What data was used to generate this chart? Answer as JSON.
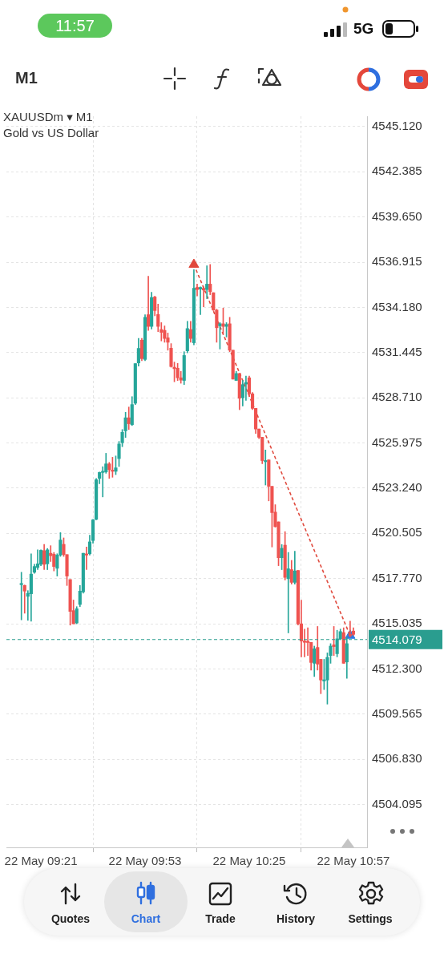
{
  "chart_data": {
    "type": "candlestick",
    "title": "XAUUSDm ▾ M1",
    "subtitle": "Gold vs US Dollar",
    "annotations": [
      "11:57",
      "5G",
      "M1",
      "Quotes",
      "Chart",
      "Trade",
      "History",
      "Settings"
    ],
    "categories": [
      null,
      null,
      null,
      null,
      null,
      null,
      "22 May 09:21",
      null,
      null,
      null,
      null,
      null,
      null,
      null,
      null,
      null,
      null,
      null,
      null,
      null,
      null,
      null,
      null,
      null,
      null,
      null,
      null,
      null,
      null,
      null,
      null,
      null,
      null,
      null,
      null,
      null,
      null,
      null,
      "22 May 09:53",
      null,
      null,
      null,
      null,
      null,
      null,
      null,
      null,
      null,
      null,
      null,
      null,
      null,
      null,
      null,
      null,
      null,
      null,
      null,
      null,
      null,
      null,
      null,
      null,
      null,
      null,
      null,
      null,
      null,
      null,
      null,
      "22 May 10:25",
      null,
      null,
      null,
      null,
      null,
      null,
      null,
      null,
      null,
      null,
      null,
      null,
      null,
      null,
      null,
      null,
      null,
      null,
      null,
      null,
      null,
      null,
      null,
      null,
      null,
      null,
      null,
      null,
      null,
      null,
      null,
      "22 May 10:57"
    ],
    "ylim": [
      4501.5,
      4545.75
    ],
    "yticks": [
      {
        "value": 4545.12,
        "label": "4545.120"
      },
      {
        "value": 4542.385,
        "label": "4542.385"
      },
      {
        "value": 4539.65,
        "label": "4539.650"
      },
      {
        "value": 4536.915,
        "label": "4536.915"
      },
      {
        "value": 4534.18,
        "label": "4534.180"
      },
      {
        "value": 4531.445,
        "label": "4531.445"
      },
      {
        "value": 4528.71,
        "label": "4528.710"
      },
      {
        "value": 4525.975,
        "label": "4525.975"
      },
      {
        "value": 4523.24,
        "label": "4523.240"
      },
      {
        "value": 4520.505,
        "label": "4520.505"
      },
      {
        "value": 4517.77,
        "label": "4517.770"
      },
      {
        "value": 4515.035,
        "label": "4515.035"
      },
      {
        "value": 4512.3,
        "label": "4512.300"
      },
      {
        "value": 4509.565,
        "label": "4509.565"
      },
      {
        "value": 4506.83,
        "label": "4506.830"
      },
      {
        "value": 4504.095,
        "label": "4504.095"
      }
    ],
    "grid": true,
    "ref_lines": [
      {
        "axis": "y",
        "value": 4514.079,
        "label": "4514.079",
        "color": "#2a9d8f",
        "line_style": "dashed"
      }
    ],
    "series": [
      {
        "ohlc": [
          [
            4517.4,
            4518.15,
            4515.27,
            4517.43
          ],
          [
            4517.35,
            4517.38,
            4515.67,
            4517.01
          ],
          [
            4516.69,
            4517.04,
            4515.24,
            4516.88
          ],
          [
            4516.85,
            4519.27,
            4515.19,
            4518.04
          ],
          [
            4518.15,
            4518.63,
            4518.08,
            4518.5
          ],
          [
            4518.44,
            4519.51,
            4518.31,
            4518.66
          ],
          [
            4518.63,
            4519.51,
            4518.55,
            4519.48
          ],
          [
            4519.46,
            4519.84,
            4518.31,
            4518.63
          ],
          [
            4518.66,
            4519.59,
            4518.31,
            4519.51
          ],
          [
            4519.3,
            4519.76,
            4518.8,
            4519.15
          ],
          [
            4519.24,
            4519.35,
            4518.23,
            4518.5
          ],
          [
            4518.39,
            4519.27,
            4517.92,
            4519.19
          ],
          [
            4519.19,
            4520.55,
            4519.11,
            4520.1
          ],
          [
            4519.84,
            4520.23,
            4519.11,
            4519.22
          ],
          [
            4519.22,
            4519.22,
            4517.35,
            4517.92
          ],
          [
            4517.71,
            4517.71,
            4514.95,
            4515.78
          ],
          [
            4515.83,
            4516.47,
            4515.03,
            4515.03
          ],
          [
            4515.08,
            4516.07,
            4515.03,
            4515.94
          ],
          [
            4516.2,
            4517.35,
            4516.07,
            4517.01
          ],
          [
            4516.96,
            4519.3,
            4516.88,
            4519.3
          ],
          [
            4519.24,
            4519.68,
            4518.31,
            4519.19
          ],
          [
            4519.27,
            4520.39,
            4519.19,
            4519.99
          ],
          [
            4520.07,
            4521.35,
            4519.91,
            4521.32
          ],
          [
            4521.35,
            4523.83,
            4521.32,
            4523.75
          ],
          [
            4523.83,
            4524.22,
            4523.51,
            4524.19
          ],
          [
            4524.19,
            4524.54,
            4522.71,
            4524.22
          ],
          [
            4524.22,
            4525.35,
            4524.14,
            4524.71
          ],
          [
            4524.71,
            4524.8,
            4523.83,
            4524.36
          ],
          [
            4524.31,
            4525.11,
            4523.9,
            4524.26
          ],
          [
            4524.26,
            4525.19,
            4524.06,
            4524.47
          ],
          [
            4525.03,
            4526.07,
            4524.55,
            4525.91
          ],
          [
            4525.99,
            4526.79,
            4525.75,
            4526.62
          ],
          [
            4526.71,
            4527.83,
            4526.31,
            4527.5
          ],
          [
            4527.5,
            4528.15,
            4526.79,
            4527.14
          ],
          [
            4527.08,
            4528.78,
            4527.03,
            4528.3
          ],
          [
            4528.38,
            4530.78,
            4528.3,
            4530.78
          ],
          [
            4530.82,
            4532.31,
            4530.63,
            4531.7
          ],
          [
            4532.2,
            4532.31,
            4530.95,
            4531.08
          ],
          [
            4531.03,
            4533.74,
            4530.95,
            4533.58
          ],
          [
            4533.74,
            4536.07,
            4532.79,
            4533.03
          ],
          [
            4533.03,
            4535.1,
            4532.87,
            4534.78
          ],
          [
            4534.81,
            4534.86,
            4533.67,
            4533.99
          ],
          [
            4533.75,
            4534.38,
            4532.71,
            4533.03
          ],
          [
            4532.84,
            4533.26,
            4532.15,
            4532.67
          ],
          [
            4532.79,
            4533.06,
            4532.07,
            4532.3
          ],
          [
            4532.34,
            4532.63,
            4531.59,
            4532.07
          ],
          [
            4531.71,
            4531.99,
            4530.56,
            4530.6
          ],
          [
            4530.56,
            4530.87,
            4529.68,
            4530.47
          ],
          [
            4530.5,
            4530.79,
            4529.75,
            4529.92
          ],
          [
            4529.92,
            4530.31,
            4529.59,
            4529.78
          ],
          [
            4529.76,
            4531.5,
            4529.51,
            4531.27
          ],
          [
            4531.55,
            4533.34,
            4531.43,
            4532.9
          ],
          [
            4532.84,
            4533.34,
            4532.07,
            4532.3
          ],
          [
            4532.04,
            4536.47,
            4531.91,
            4535.34
          ],
          [
            4535.39,
            4535.59,
            4534.87,
            4535.26
          ],
          [
            4535.29,
            4535.42,
            4533.75,
            4535.39
          ],
          [
            4535.34,
            4535.42,
            4534.22,
            4535.23
          ],
          [
            4535.26,
            4536.7,
            4534.71,
            4535.59
          ],
          [
            4535.59,
            4536.78,
            4534.95,
            4535.13
          ],
          [
            4535.07,
            4535.07,
            4533.99,
            4534.02
          ],
          [
            4534.02,
            4534.07,
            4532.07,
            4532.95
          ],
          [
            4533.06,
            4533.26,
            4531.66,
            4533.19
          ],
          [
            4533.19,
            4534.14,
            4532.55,
            4533.03
          ],
          [
            4533.03,
            4533.26,
            4532.39,
            4533.15
          ],
          [
            4533.19,
            4533.58,
            4531.5,
            4531.59
          ],
          [
            4531.59,
            4531.59,
            4529.84,
            4529.84
          ],
          [
            4529.76,
            4530.31,
            4529.76,
            4530.18
          ],
          [
            4530.18,
            4530.18,
            4527.99,
            4528.68
          ],
          [
            4528.71,
            4529.76,
            4528.22,
            4529.51
          ],
          [
            4529.54,
            4530.03,
            4528.55,
            4529.64
          ],
          [
            4529.92,
            4530.03,
            4528.79,
            4528.95
          ],
          [
            4528.95,
            4529.03,
            4527.99,
            4528.07
          ],
          [
            4528.07,
            4528.07,
            4526.55,
            4526.82
          ],
          [
            4526.82,
            4526.82,
            4526.24,
            4526.32
          ],
          [
            4526.32,
            4526.32,
            4524.72,
            4524.91
          ],
          [
            4524.84,
            4525.55,
            4523.43,
            4524.91
          ],
          [
            4524.95,
            4524.95,
            4522.47,
            4523.35
          ],
          [
            4523.35,
            4523.35,
            4519.68,
            4521.76
          ],
          [
            4521.79,
            4522.24,
            4520.88,
            4520.91
          ],
          [
            4521.2,
            4521.2,
            4518.55,
            4519.03
          ],
          [
            4519.03,
            4519.83,
            4518.31,
            4519.6
          ],
          [
            4519.79,
            4520.61,
            4517.68,
            4517.84
          ],
          [
            4517.76,
            4519.35,
            4514.48,
            4518.36
          ],
          [
            4518.31,
            4518.87,
            4517.43,
            4517.54
          ],
          [
            4517.54,
            4519.43,
            4517.43,
            4518.23
          ],
          [
            4518.26,
            4518.26,
            4514.95,
            4515.03
          ],
          [
            4515.03,
            4516.46,
            4513.03,
            4513.99
          ],
          [
            4513.99,
            4514.71,
            4513.03,
            4513.91
          ],
          [
            4513.96,
            4514.79,
            4513.11,
            4513.9
          ],
          [
            4513.91,
            4513.91,
            4512.23,
            4512.69
          ],
          [
            4512.64,
            4513.68,
            4511.84,
            4513.52
          ],
          [
            4513.6,
            4514.87,
            4512.23,
            4512.59
          ],
          [
            4512.88,
            4512.88,
            4510.8,
            4511.63
          ],
          [
            4511.57,
            4512.88,
            4511.05,
            4511.63
          ],
          [
            4511.63,
            4513.27,
            4510.17,
            4513.0
          ],
          [
            4513.11,
            4513.83,
            4512.64,
            4513.68
          ],
          [
            4513.76,
            4514.87,
            4513.11,
            4513.65
          ],
          [
            4513.22,
            4514.64,
            4513.03,
            4514.12
          ],
          [
            4514.12,
            4514.71,
            4514.07,
            4514.56
          ],
          [
            4514.5,
            4514.79,
            4512.64,
            4512.64
          ],
          [
            4512.72,
            4514.23,
            4511.73,
            4513.83
          ],
          [
            4514.39,
            4515.19,
            4514.23,
            4514.31
          ],
          [
            4514.59,
            4514.79,
            4514.31,
            4514.39
          ]
        ],
        "colors": [
          "#26a69a",
          "#ef5350",
          "#26a69a",
          "#26a69a",
          "#26a69a",
          "#26a69a",
          "#26a69a",
          "#ef5350",
          "#26a69a",
          "#ef5350",
          "#ef5350",
          "#26a69a",
          "#26a69a",
          "#ef5350",
          "#ef5350",
          "#ef5350",
          "#ef5350",
          "#26a69a",
          "#26a69a",
          "#26a69a",
          "#ef5350",
          "#26a69a",
          "#26a69a",
          "#26a69a",
          "#26a69a",
          "#26a69a",
          "#26a69a",
          "#ef5350",
          "#ef5350",
          "#26a69a",
          "#26a69a",
          "#26a69a",
          "#26a69a",
          "#ef5350",
          "#26a69a",
          "#26a69a",
          "#26a69a",
          "#ef5350",
          "#26a69a",
          "#ef5350",
          "#26a69a",
          "#ef5350",
          "#ef5350",
          "#ef5350",
          "#ef5350",
          "#ef5350",
          "#ef5350",
          "#ef5350",
          "#ef5350",
          "#ef5350",
          "#26a69a",
          "#26a69a",
          "#ef5350",
          "#26a69a",
          "#ef5350",
          "#26a69a",
          "#ef5350",
          "#26a69a",
          "#ef5350",
          "#ef5350",
          "#ef5350",
          "#26a69a",
          "#ef5350",
          "#26a69a",
          "#ef5350",
          "#ef5350",
          "#26a69a",
          "#ef5350",
          "#26a69a",
          "#26a69a",
          "#ef5350",
          "#ef5350",
          "#ef5350",
          "#ef5350",
          "#ef5350",
          "#26a69a",
          "#ef5350",
          "#ef5350",
          "#ef5350",
          "#ef5350",
          "#26a69a",
          "#ef5350",
          "#26a69a",
          "#ef5350",
          "#26a69a",
          "#ef5350",
          "#ef5350",
          "#ef5350",
          "#ef5350",
          "#ef5350",
          "#26a69a",
          "#ef5350",
          "#ef5350",
          "#26a69a",
          "#26a69a",
          "#26a69a",
          "#ef5350",
          "#26a69a",
          "#26a69a",
          "#ef5350",
          "#26a69a",
          "#ef5350",
          "#ef5350"
        ]
      },
      {
        "type": "line",
        "values": [
          null,
          null,
          null,
          null,
          null,
          null,
          null,
          null,
          null,
          null,
          null,
          null,
          null,
          null,
          null,
          null,
          null,
          null,
          null,
          null,
          null,
          null,
          null,
          null,
          null,
          null,
          null,
          null,
          null,
          null,
          null,
          null,
          null,
          null,
          null,
          null,
          null,
          null,
          null,
          null,
          null,
          null,
          null,
          null,
          null,
          null,
          null,
          null,
          null,
          null,
          null,
          null,
          null,
          4536.77,
          null,
          null,
          null,
          null,
          null,
          null,
          null,
          null,
          null,
          null,
          null,
          null,
          null,
          null,
          null,
          null,
          null,
          null,
          null,
          null,
          null,
          null,
          null,
          null,
          null,
          null,
          null,
          null,
          null,
          null,
          null,
          null,
          null,
          null,
          null,
          null,
          null,
          null,
          null,
          null,
          null,
          null,
          null,
          null,
          null,
          null,
          null,
          4514.32,
          null
        ],
        "color": "#e04b3f",
        "line_style": "dashed",
        "marker": "none"
      },
      {
        "type": "scatter",
        "values": [
          null,
          null,
          null,
          null,
          null,
          null,
          null,
          null,
          null,
          null,
          null,
          null,
          null,
          null,
          null,
          null,
          null,
          null,
          null,
          null,
          null,
          null,
          null,
          null,
          null,
          null,
          null,
          null,
          null,
          null,
          null,
          null,
          null,
          null,
          null,
          null,
          null,
          null,
          null,
          null,
          null,
          null,
          null,
          null,
          null,
          null,
          null,
          null,
          null,
          null,
          null,
          null,
          null,
          4536.77,
          null,
          null,
          null,
          null,
          null,
          null,
          null,
          null,
          null,
          null,
          null,
          null,
          null,
          null,
          null,
          null,
          null,
          null,
          null,
          null,
          null,
          null,
          null,
          null,
          null,
          null,
          null,
          null,
          null,
          null,
          null,
          null,
          null,
          null,
          null,
          null,
          null,
          null,
          null,
          null,
          null,
          null,
          null,
          null,
          null,
          null,
          null,
          4514.32,
          null
        ],
        "colors": [
          null,
          null,
          null,
          null,
          null,
          null,
          null,
          null,
          null,
          null,
          null,
          null,
          null,
          null,
          null,
          null,
          null,
          null,
          null,
          null,
          null,
          null,
          null,
          null,
          null,
          null,
          null,
          null,
          null,
          null,
          null,
          null,
          null,
          null,
          null,
          null,
          null,
          null,
          null,
          null,
          null,
          null,
          null,
          null,
          null,
          null,
          null,
          null,
          null,
          null,
          null,
          null,
          null,
          "#e0483c",
          null,
          null,
          null,
          null,
          null,
          null,
          null,
          null,
          null,
          null,
          null,
          null,
          null,
          null,
          null,
          null,
          null,
          null,
          null,
          null,
          null,
          null,
          null,
          null,
          null,
          null,
          null,
          null,
          null,
          null,
          null,
          null,
          null,
          null,
          null,
          null,
          null,
          null,
          null,
          null,
          null,
          null,
          null,
          null,
          null,
          null,
          null,
          "#2d7be5",
          null
        ],
        "marker": "triangle"
      }
    ]
  }
}
